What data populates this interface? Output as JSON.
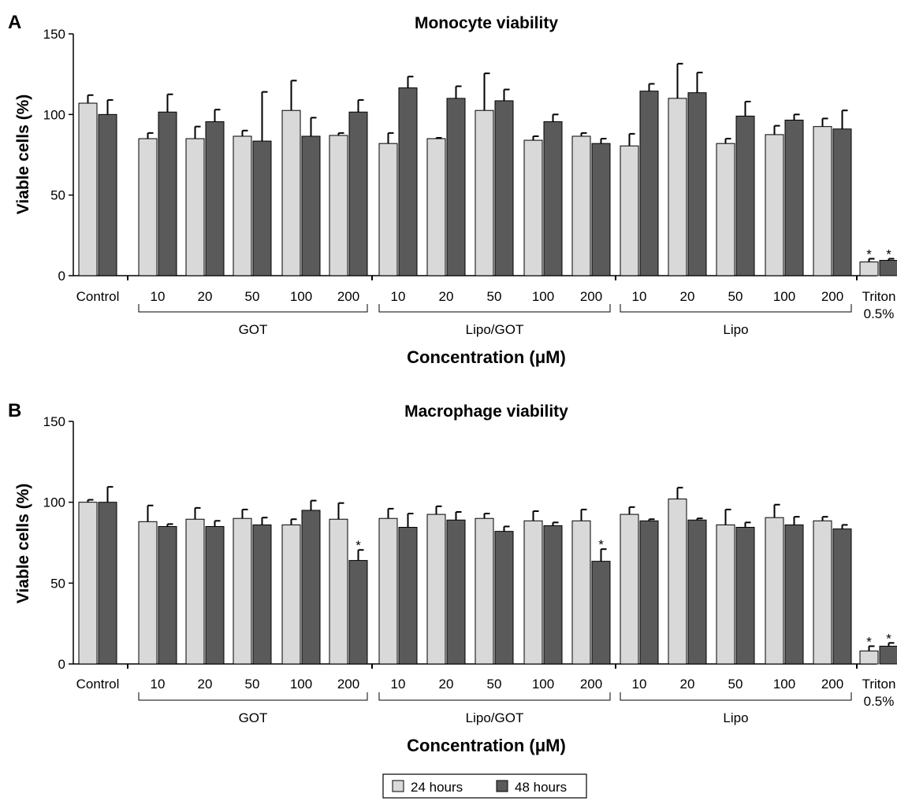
{
  "chart_data": [
    {
      "type": "bar",
      "panel_letter": "A",
      "title": "Monocyte viability",
      "xlabel": "Concentration (μM)",
      "ylabel": "Viable cells (%)",
      "ylim": [
        0,
        150
      ],
      "yticks": [
        "0",
        "50",
        "100",
        "150"
      ],
      "grid": false,
      "categories": [
        "Control",
        "10",
        "20",
        "50",
        "100",
        "200",
        "10",
        "20",
        "50",
        "100",
        "200",
        "10",
        "20",
        "50",
        "100",
        "200",
        "Triton 0.5%"
      ],
      "groups": [
        {
          "label": "GOT",
          "start": 1,
          "end": 5
        },
        {
          "label": "Lipo/GOT",
          "start": 6,
          "end": 10
        },
        {
          "label": "Lipo",
          "start": 11,
          "end": 15
        }
      ],
      "series": [
        {
          "name": "24 hours",
          "color": "#d9d9d9",
          "values": [
            107,
            85,
            85,
            86.5,
            102.5,
            87,
            82,
            85,
            102.5,
            84,
            86.5,
            80.5,
            110,
            82,
            87.5,
            92.5,
            8.5
          ],
          "errors": [
            5,
            3.5,
            7.5,
            3.5,
            18.5,
            1.5,
            6.5,
            0.5,
            23,
            2.5,
            2,
            7.5,
            21.5,
            3,
            5.5,
            5,
            2
          ]
        },
        {
          "name": "48 hours",
          "color": "#5a5a5a",
          "values": [
            100,
            101.5,
            95.5,
            83.5,
            86.5,
            101.5,
            116.5,
            110,
            108.5,
            95.5,
            82,
            114.5,
            113.5,
            99,
            96.5,
            91,
            9.5
          ],
          "errors": [
            9,
            11,
            7.5,
            30.5,
            11.5,
            7.5,
            7,
            7.5,
            7,
            4.5,
            3,
            4.5,
            12.5,
            9,
            3.5,
            11.5,
            1
          ]
        }
      ],
      "annotations": [
        {
          "text": "*",
          "category": 16,
          "series": 0
        },
        {
          "text": "*",
          "category": 16,
          "series": 1
        }
      ]
    },
    {
      "type": "bar",
      "panel_letter": "B",
      "title": "Macrophage viability",
      "xlabel": "Concentration (μM)",
      "ylabel": "Viable cells (%)",
      "ylim": [
        0,
        150
      ],
      "yticks": [
        "0",
        "50",
        "100",
        "150"
      ],
      "grid": false,
      "categories": [
        "Control",
        "10",
        "20",
        "50",
        "100",
        "200",
        "10",
        "20",
        "50",
        "100",
        "200",
        "10",
        "20",
        "50",
        "100",
        "200",
        "Triton 0.5%"
      ],
      "groups": [
        {
          "label": "GOT",
          "start": 1,
          "end": 5
        },
        {
          "label": "Lipo/GOT",
          "start": 6,
          "end": 10
        },
        {
          "label": "Lipo",
          "start": 11,
          "end": 15
        }
      ],
      "series": [
        {
          "name": "24 hours",
          "color": "#d9d9d9",
          "values": [
            100,
            88,
            89.5,
            90,
            86,
            89.5,
            90,
            92.5,
            90,
            88.5,
            88.5,
            92.5,
            102,
            86,
            90.5,
            88.5,
            8
          ],
          "errors": [
            1.5,
            10,
            7,
            5.5,
            3.5,
            10,
            6,
            5,
            3,
            6,
            7,
            4.5,
            7,
            9.5,
            8,
            2.5,
            3
          ]
        },
        {
          "name": "48 hours",
          "color": "#5a5a5a",
          "values": [
            100,
            85,
            85,
            86,
            95,
            64,
            84.5,
            89,
            82,
            85.5,
            63.5,
            88.5,
            89,
            84.5,
            86,
            83.5,
            11
          ],
          "errors": [
            9.5,
            1.5,
            3.5,
            4.5,
            6,
            6.5,
            8.5,
            5,
            3,
            2,
            7.5,
            1,
            1,
            3,
            5,
            2.5,
            2
          ]
        }
      ],
      "annotations": [
        {
          "text": "*",
          "category": 5,
          "series": 1
        },
        {
          "text": "*",
          "category": 10,
          "series": 1
        },
        {
          "text": "*",
          "category": 16,
          "series": 0
        },
        {
          "text": "*",
          "category": 16,
          "series": 1
        }
      ]
    }
  ],
  "legend": {
    "placement": "bottom-center",
    "items": [
      {
        "label": "24 hours",
        "color": "#d9d9d9"
      },
      {
        "label": "48 hours",
        "color": "#5a5a5a"
      }
    ]
  }
}
